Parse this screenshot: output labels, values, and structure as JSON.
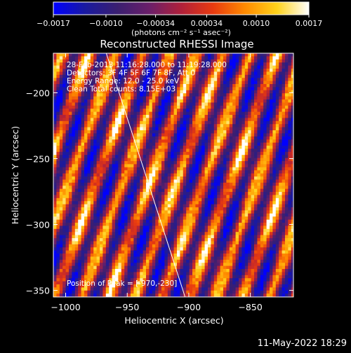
{
  "chart_data": {
    "type": "heatmap",
    "title": "Reconstructed RHESSI Image",
    "xlabel": "Heliocentric X (arcsec)",
    "ylabel": "Heliocentric Y (arcsec)",
    "xlim": [
      -1010,
      -815
    ],
    "ylim": [
      -355,
      -170
    ],
    "x_ticks": [
      {
        "value": -1000,
        "label": "−1000"
      },
      {
        "value": -950,
        "label": "−950"
      },
      {
        "value": -900,
        "label": "−900"
      },
      {
        "value": -850,
        "label": "−850"
      }
    ],
    "y_ticks": [
      {
        "value": -200,
        "label": "−200"
      },
      {
        "value": -250,
        "label": "−250"
      },
      {
        "value": -300,
        "label": "−300"
      },
      {
        "value": -350,
        "label": "−350"
      }
    ],
    "colorbar": {
      "min": -0.0017,
      "max": 0.0017,
      "ticks": [
        {
          "value": -0.0017,
          "label": "−0.0017"
        },
        {
          "value": -0.001,
          "label": "−0.0010"
        },
        {
          "value": -0.00034,
          "label": "−0.00034"
        },
        {
          "value": 0.00034,
          "label": "0.00034"
        },
        {
          "value": 0.001,
          "label": "0.0010"
        },
        {
          "value": 0.0017,
          "label": "0.0017"
        }
      ],
      "units_label": "(photons cm⁻² s⁻¹ asec⁻²)",
      "colormap": [
        "#0000ff",
        "#1a1aa0",
        "#3a1f70",
        "#6a1f6a",
        "#b0203a",
        "#e83a10",
        "#ff8a00",
        "#ffd21a",
        "#ffffff"
      ]
    },
    "annotations": [
      "28-Feb-2013 11:16:28.000 to 11:19:28.000",
      "Detectors: 3F 4F 5F 6F 7F 8F, Att 0",
      "Energy Range: 12.0 - 25.0 keV",
      "Clean    Total counts: 8.15E+03"
    ],
    "peak_label": "Position of Peak = [-970,-230]",
    "limb_line": {
      "x": [
        -967,
        -903
      ],
      "y": [
        -170,
        -355
      ],
      "color": "#ffffff"
    },
    "pattern_desc": "diagonal fringe stripes",
    "footer_date": "11-May-2022 18:29"
  }
}
